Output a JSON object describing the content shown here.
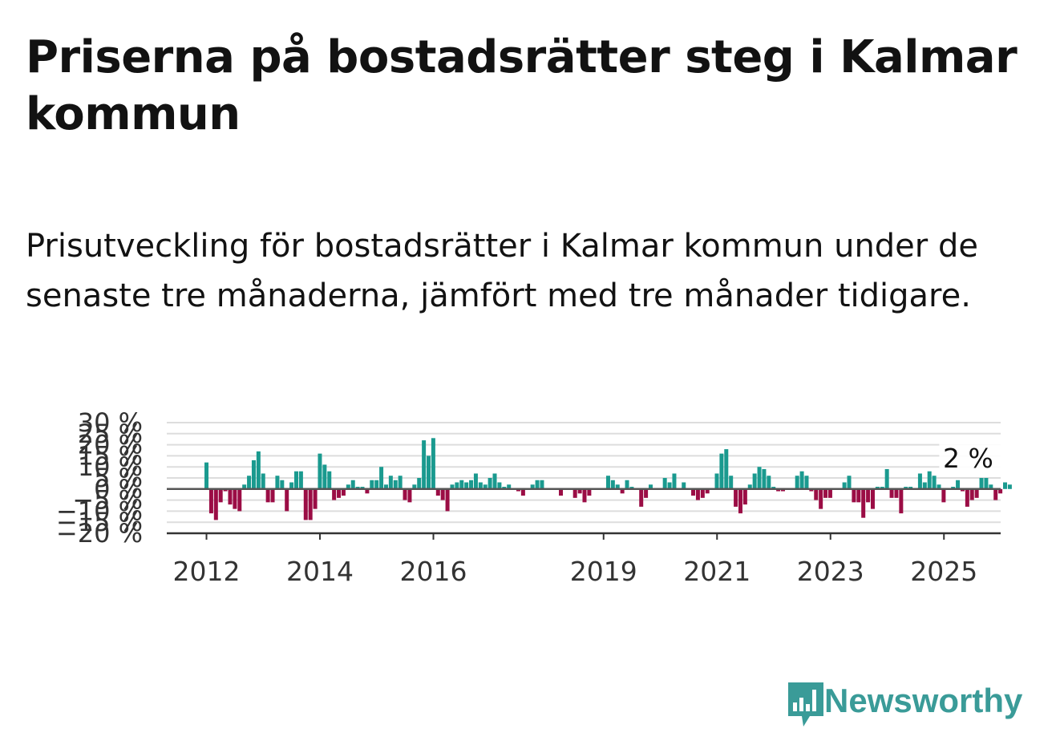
{
  "title": "Priserna på bostadsrätter steg i Kalmar kommun",
  "subtitle": "Prisutveckling för bostadsrätter i Kalmar kommun under de senaste tre månaderna, jämfört med tre månader tidigare.",
  "brand": {
    "name": "Newsworthy",
    "color": "#3a9b98"
  },
  "colors": {
    "positive": "#1a9a8f",
    "negative": "#9b0d45",
    "zero_line": "#555555",
    "grid": "#dddddd"
  },
  "chart_data": {
    "type": "bar",
    "title": "",
    "xlabel": "",
    "ylabel": "",
    "x_ticks": [
      {
        "label": "2012",
        "x": 2012.0
      },
      {
        "label": "2014",
        "x": 2014.0
      },
      {
        "label": "2016",
        "x": 2016.0
      },
      {
        "label": "2019",
        "x": 2019.0
      },
      {
        "label": "2021",
        "x": 2021.0
      },
      {
        "label": "2023",
        "x": 2023.0
      },
      {
        "label": "2025",
        "x": 2025.0
      }
    ],
    "y_ticks": [
      {
        "label": "30 %",
        "value": 30
      },
      {
        "label": "25 %",
        "value": 25
      },
      {
        "label": "20 %",
        "value": 20
      },
      {
        "label": "15 %",
        "value": 15
      },
      {
        "label": "10 %",
        "value": 10
      },
      {
        "label": "5 %",
        "value": 5
      },
      {
        "label": "0 %",
        "value": 0
      },
      {
        "label": "−5 %",
        "value": -5
      },
      {
        "label": "−10 %",
        "value": -10
      },
      {
        "label": "−15 %",
        "value": -15
      },
      {
        "label": "−20 %",
        "value": -20
      }
    ],
    "ylim": [
      -20,
      30
    ],
    "xlim": [
      2011.3,
      2026.0
    ],
    "grid": true,
    "annotation": {
      "text": "2 %",
      "x": 2025.2,
      "value": 2
    },
    "series": [
      {
        "x_start": 2012.0,
        "x_step": 0.0833,
        "values": [
          12,
          -11,
          -14,
          -6,
          -1,
          -7,
          -9,
          -10,
          2,
          6,
          13,
          17,
          7,
          -6,
          -6,
          6,
          4,
          -10,
          3,
          8,
          8,
          -14,
          -14,
          -9,
          16,
          11,
          8,
          -5,
          -4,
          -3,
          2,
          4,
          1,
          1,
          -2,
          4,
          4,
          10,
          2,
          6,
          4,
          6,
          -5,
          -6,
          2,
          5,
          22,
          15,
          23,
          -3,
          -5,
          -10,
          2,
          3,
          4,
          3,
          4,
          7,
          3,
          2,
          5,
          7,
          3,
          1,
          2,
          0,
          -1,
          -3,
          0,
          2,
          4,
          4,
          0,
          0,
          0,
          -3,
          0,
          0,
          -4,
          -2,
          -6,
          -3,
          0,
          0,
          0,
          6,
          4,
          2,
          -2,
          4,
          1,
          0,
          -8,
          -4,
          2,
          0,
          0,
          5,
          3,
          7,
          0,
          3,
          0,
          -3,
          -5,
          -4,
          -2,
          0,
          7,
          16,
          18,
          6,
          -8,
          -11,
          -7,
          2,
          7,
          10,
          9,
          6,
          1,
          -1,
          -1,
          0,
          0,
          6,
          8,
          6,
          -1,
          -5,
          -9,
          -4,
          -4,
          0,
          0,
          3,
          6,
          -6,
          -6,
          -13,
          -6,
          -9,
          1,
          1,
          9,
          -4,
          -4,
          -11,
          1,
          1,
          0,
          7,
          3,
          8,
          6,
          2,
          -6,
          0,
          1,
          4,
          -1,
          -8,
          -5,
          -4,
          5,
          5,
          2,
          -5,
          -2,
          3,
          2
        ]
      }
    ]
  }
}
